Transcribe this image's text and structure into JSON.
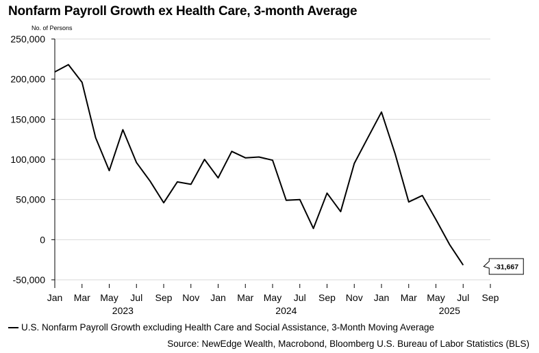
{
  "title": "Nonfarm Payroll Growth ex Health Care, 3-month Average",
  "source": "Source: NewEdge Wealth, Macrobond, Bloomberg U.S. Bureau of Labor Statistics (BLS)",
  "colors": {
    "line": "#000000",
    "grid": "#d9d9d9",
    "axis": "#000000"
  },
  "chart_data": {
    "type": "line",
    "title": "Nonfarm Payroll Growth ex Health Care, 3-month Average",
    "ylabel": "No. of Persons",
    "ylim": [
      -50000,
      250000
    ],
    "yticks": [
      -50000,
      0,
      50000,
      100000,
      150000,
      200000,
      250000
    ],
    "ytick_labels": [
      "-50,000",
      "0",
      "50,000",
      "100,000",
      "150,000",
      "200,000",
      "250,000"
    ],
    "x_month_ticks": [
      "Jan",
      "Mar",
      "May",
      "Jul",
      "Sep",
      "Nov",
      "Jan",
      "Mar",
      "May",
      "Jul",
      "Sep",
      "Nov",
      "Jan",
      "Mar",
      "May",
      "Jul",
      "Sep"
    ],
    "x_year_labels": [
      "2023",
      "2024",
      "2025"
    ],
    "grid": true,
    "legend_position": "bottom-left",
    "series": [
      {
        "name": "U.S. Nonfarm Payroll Growth excluding Health Care and Social Assistance, 3-Month Moving Average",
        "x": [
          "2023-01",
          "2023-02",
          "2023-03",
          "2023-04",
          "2023-05",
          "2023-06",
          "2023-07",
          "2023-08",
          "2023-09",
          "2023-10",
          "2023-11",
          "2023-12",
          "2024-01",
          "2024-02",
          "2024-03",
          "2024-04",
          "2024-05",
          "2024-06",
          "2024-07",
          "2024-08",
          "2024-09",
          "2024-10",
          "2024-11",
          "2024-12",
          "2025-01",
          "2025-02",
          "2025-03",
          "2025-04",
          "2025-05",
          "2025-06",
          "2025-07"
        ],
        "values": [
          209000,
          218000,
          196000,
          127000,
          86000,
          137000,
          96000,
          73000,
          46000,
          72000,
          69000,
          100000,
          77000,
          110000,
          102000,
          103000,
          99000,
          49000,
          50000,
          14000,
          58000,
          35000,
          95000,
          127000,
          159000,
          107000,
          47000,
          55000,
          25000,
          -6000,
          -31667
        ]
      }
    ],
    "annotations": [
      {
        "x": "2025-07",
        "value": -31667,
        "text": "-31,667"
      }
    ]
  }
}
